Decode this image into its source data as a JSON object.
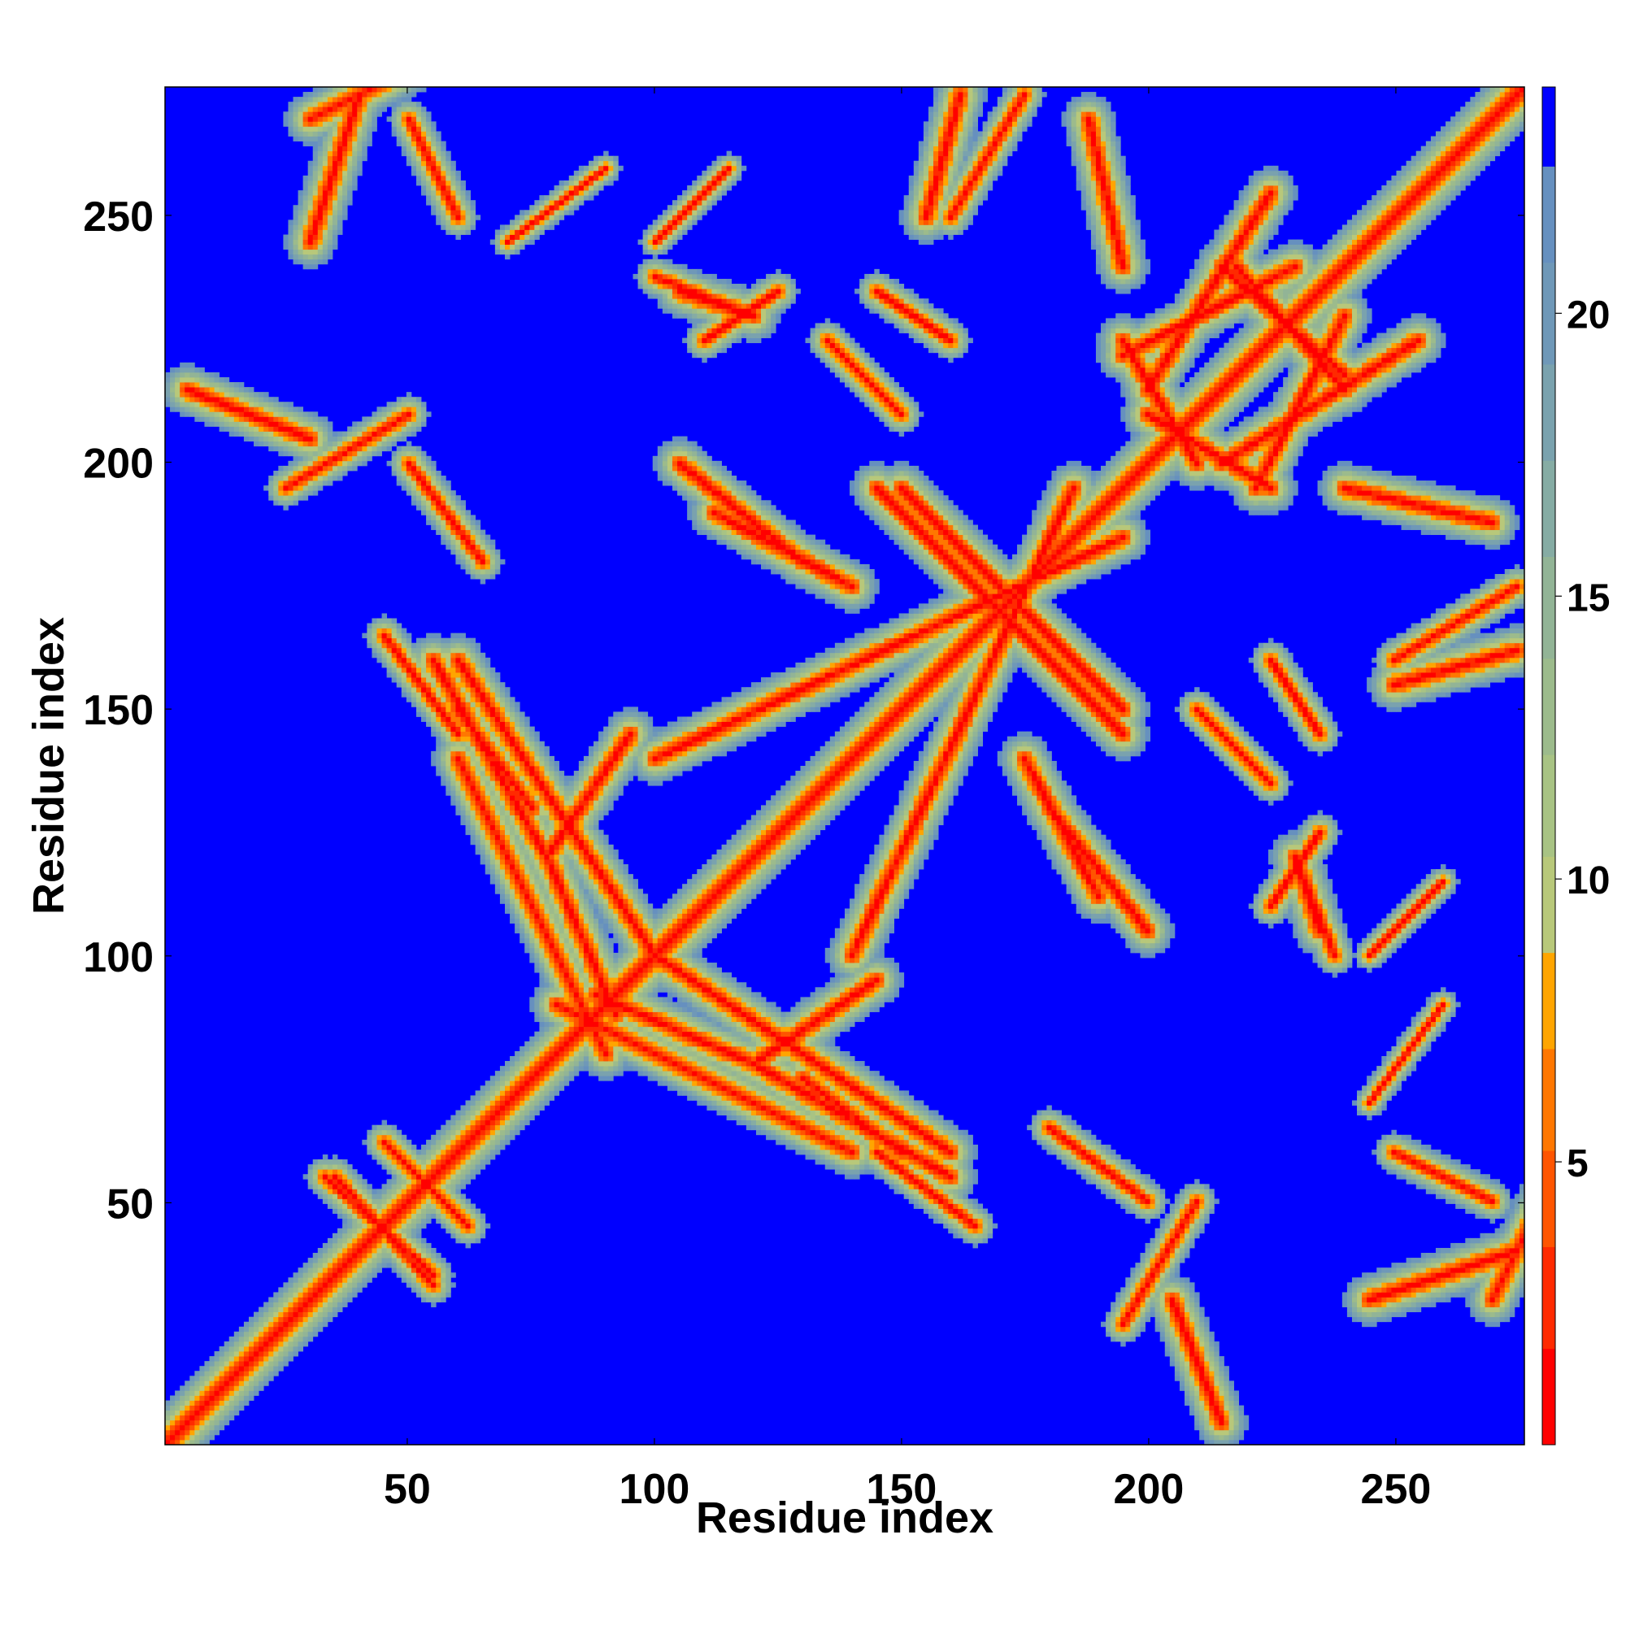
{
  "chart_data": {
    "type": "heatmap",
    "title": "",
    "xlabel": "Residue index",
    "ylabel": "Residue index",
    "xlim": [
      1,
      276
    ],
    "ylim": [
      1,
      276
    ],
    "x_ticks": [
      50,
      100,
      150,
      200,
      250
    ],
    "y_ticks": [
      50,
      100,
      150,
      200,
      250
    ],
    "colorbar": {
      "range": [
        0,
        24
      ],
      "ticks": [
        5,
        10,
        15,
        20
      ],
      "levels": [
        {
          "from": 0,
          "to": 1.7,
          "color": "#ff0000"
        },
        {
          "from": 1.7,
          "to": 3.5,
          "color": "#ff2a00"
        },
        {
          "from": 3.5,
          "to": 5.2,
          "color": "#ff5500"
        },
        {
          "from": 5.2,
          "to": 7.0,
          "color": "#ff7700"
        },
        {
          "from": 7.0,
          "to": 8.7,
          "color": "#ffa500"
        },
        {
          "from": 8.7,
          "to": 10.4,
          "color": "#b8c87a"
        },
        {
          "from": 10.4,
          "to": 12.2,
          "color": "#a8c384"
        },
        {
          "from": 12.2,
          "to": 13.9,
          "color": "#9cbb8c"
        },
        {
          "from": 13.9,
          "to": 15.7,
          "color": "#92b496"
        },
        {
          "from": 15.7,
          "to": 17.4,
          "color": "#86aca4"
        },
        {
          "from": 17.4,
          "to": 19.1,
          "color": "#7aa2ae"
        },
        {
          "from": 19.1,
          "to": 20.9,
          "color": "#6f98b8"
        },
        {
          "from": 20.9,
          "to": 22.6,
          "color": "#6690bf"
        },
        {
          "from": 22.6,
          "to": 24,
          "color": "#0000ff"
        }
      ]
    },
    "background_color": "#0000ff",
    "contact_features": [
      {
        "kind": "diagonal",
        "from": 1,
        "to": 276,
        "width": 6
      },
      {
        "kind": "band",
        "a": [
          45,
          62
        ],
        "b": [
          62,
          45
        ],
        "width": 4
      },
      {
        "kind": "band",
        "a": [
          33,
          55
        ],
        "b": [
          55,
          35
        ],
        "width": 4
      },
      {
        "kind": "band",
        "a": [
          55,
          160
        ],
        "b": [
          78,
          120
        ],
        "width": 5
      },
      {
        "kind": "band",
        "a": [
          60,
          150
        ],
        "b": [
          75,
          130
        ],
        "width": 5
      },
      {
        "kind": "band",
        "a": [
          78,
          120
        ],
        "b": [
          95,
          145
        ],
        "width": 5
      },
      {
        "kind": "band",
        "a": [
          80,
          90
        ],
        "b": [
          140,
          60
        ],
        "width": 5
      },
      {
        "kind": "band",
        "a": [
          88,
          92
        ],
        "b": [
          120,
          78
        ],
        "width": 5
      },
      {
        "kind": "band",
        "a": [
          100,
          100
        ],
        "b": [
          160,
          60
        ],
        "width": 5
      },
      {
        "kind": "band",
        "a": [
          112,
          190
        ],
        "b": [
          140,
          175
        ],
        "width": 5
      },
      {
        "kind": "band",
        "a": [
          120,
          230
        ],
        "b": [
          105,
          235
        ],
        "width": 5
      },
      {
        "kind": "band",
        "a": [
          140,
          100
        ],
        "b": [
          185,
          195
        ],
        "width": 5
      },
      {
        "kind": "band",
        "a": [
          145,
          195
        ],
        "b": [
          175,
          165
        ],
        "width": 5
      },
      {
        "kind": "band",
        "a": [
          175,
          170
        ],
        "b": [
          195,
          150
        ],
        "width": 5
      },
      {
        "kind": "band",
        "a": [
          180,
          130
        ],
        "b": [
          200,
          105
        ],
        "width": 5
      },
      {
        "kind": "band",
        "a": [
          195,
          225
        ],
        "b": [
          210,
          200
        ],
        "width": 5
      },
      {
        "kind": "band",
        "a": [
          200,
          215
        ],
        "b": [
          225,
          255
        ],
        "width": 5
      },
      {
        "kind": "band",
        "a": [
          218,
          240
        ],
        "b": [
          240,
          215
        ],
        "width": 5
      },
      {
        "kind": "band",
        "a": [
          222,
          195
        ],
        "b": [
          240,
          230
        ],
        "width": 5
      },
      {
        "kind": "band",
        "a": [
          240,
          195
        ],
        "b": [
          270,
          188
        ],
        "width": 5
      },
      {
        "kind": "band",
        "a": [
          250,
          155
        ],
        "b": [
          275,
          162
        ],
        "width": 5
      },
      {
        "kind": "band",
        "a": [
          245,
          30
        ],
        "b": [
          275,
          40
        ],
        "width": 5
      },
      {
        "kind": "band",
        "a": [
          30,
          270
        ],
        "b": [
          50,
          280
        ],
        "width": 5
      },
      {
        "kind": "band",
        "a": [
          5,
          215
        ],
        "b": [
          30,
          205
        ],
        "width": 5
      },
      {
        "kind": "band",
        "a": [
          25,
          195
        ],
        "b": [
          50,
          210
        ],
        "width": 4
      },
      {
        "kind": "band",
        "a": [
          135,
          225
        ],
        "b": [
          150,
          210
        ],
        "width": 4
      },
      {
        "kind": "band",
        "a": [
          160,
          250
        ],
        "b": [
          175,
          275
        ],
        "width": 4
      },
      {
        "kind": "band",
        "a": [
          100,
          238
        ],
        "b": [
          120,
          230
        ],
        "width": 4
      },
      {
        "kind": "band",
        "a": [
          145,
          60
        ],
        "b": [
          165,
          45
        ],
        "width": 4
      },
      {
        "kind": "band",
        "a": [
          205,
          30
        ],
        "b": [
          215,
          5
        ],
        "width": 4
      },
      {
        "kind": "band",
        "a": [
          225,
          110
        ],
        "b": [
          235,
          125
        ],
        "width": 4
      },
      {
        "kind": "band",
        "a": [
          225,
          160
        ],
        "b": [
          235,
          145
        ],
        "width": 4
      },
      {
        "kind": "band",
        "a": [
          180,
          65
        ],
        "b": [
          200,
          50
        ],
        "width": 4
      },
      {
        "kind": "band",
        "a": [
          250,
          60
        ],
        "b": [
          270,
          50
        ],
        "width": 4
      },
      {
        "kind": "band",
        "a": [
          100,
          245
        ],
        "b": [
          115,
          260
        ],
        "width": 3
      },
      {
        "kind": "band",
        "a": [
          70,
          245
        ],
        "b": [
          90,
          260
        ],
        "width": 3
      }
    ]
  }
}
